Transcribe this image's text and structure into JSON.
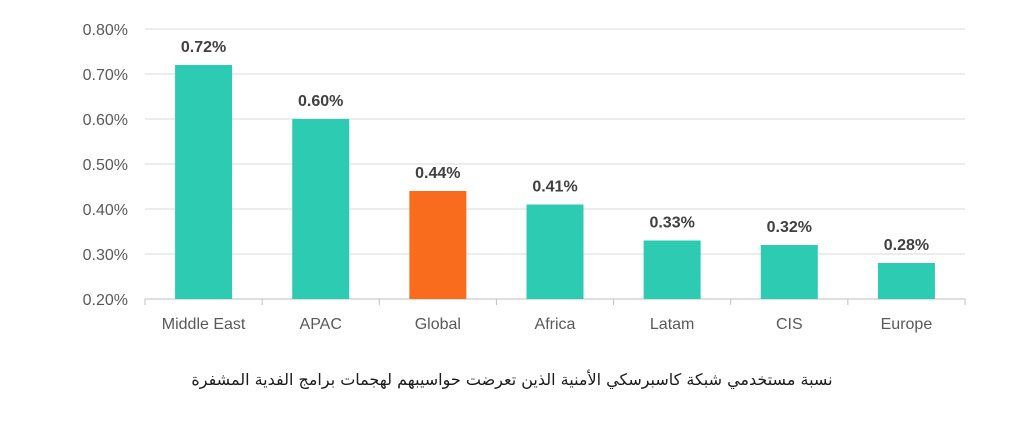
{
  "chart_data": {
    "type": "bar",
    "categories": [
      "Middle East",
      "APAC",
      "Global",
      "Africa",
      "Latam",
      "CIS",
      "Europe"
    ],
    "values": [
      0.72,
      0.6,
      0.44,
      0.41,
      0.33,
      0.32,
      0.28
    ],
    "data_labels": [
      "0.72%",
      "0.60%",
      "0.44%",
      "0.41%",
      "0.33%",
      "0.32%",
      "0.28%"
    ],
    "y_ticks": [
      0.2,
      0.3,
      0.4,
      0.5,
      0.6,
      0.7,
      0.8
    ],
    "y_tick_labels": [
      "0.20%",
      "0.30%",
      "0.40%",
      "0.50%",
      "0.60%",
      "0.70%",
      "0.80%"
    ],
    "ylim": [
      0.2,
      0.8
    ],
    "grid": true,
    "colors": {
      "default": "#2ecbb3",
      "highlight": "#f96c1e",
      "gridline": "#d9d9d9",
      "axis": "#bfbfbf"
    },
    "highlight_category": "Global"
  },
  "caption": "نسبة مستخدمي شبكة كاسبرسكي الأمنية الذين تعرضت حواسيبهم لهجمات برامج الفدية المشفرة"
}
